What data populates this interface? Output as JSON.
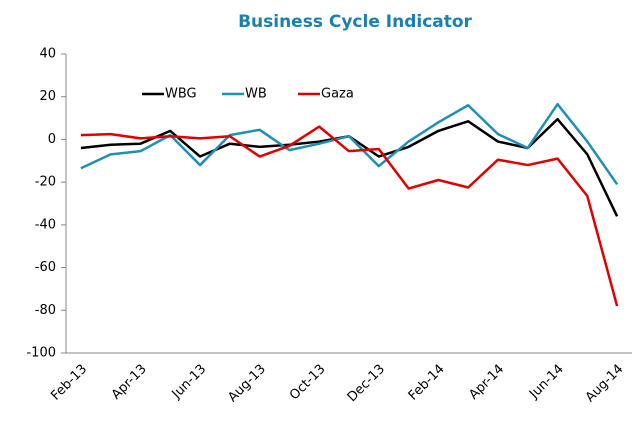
{
  "chart_data": {
    "type": "line",
    "title": "Business Cycle Indicator",
    "categories": [
      "Feb-13",
      null,
      "Apr-13",
      null,
      "Jun-13",
      null,
      "Aug-13",
      null,
      "Oct-13",
      null,
      "Dec-13",
      null,
      "Feb-14",
      null,
      "Apr-14",
      null,
      "Jun-14",
      null,
      "Aug-14"
    ],
    "series": [
      {
        "name": "WBG",
        "color": "#000000",
        "values": [
          -4,
          -2.5,
          -2,
          4,
          -8,
          -2,
          -3.5,
          -2.5,
          -1,
          1.5,
          -8,
          -3.5,
          4,
          8.5,
          -1,
          -4,
          9.5,
          -7,
          -36
        ]
      },
      {
        "name": "WB",
        "color": "#1f8fb4",
        "values": [
          -13.5,
          -7,
          -5.5,
          2,
          -12,
          2,
          4.5,
          -5,
          -2,
          1.5,
          -12.5,
          -1,
          8,
          16,
          2.5,
          -4,
          16.5,
          -1,
          -21
        ]
      },
      {
        "name": "Gaza",
        "color": "#e00000",
        "values": [
          2,
          2.5,
          0.5,
          1.5,
          0.5,
          1.5,
          -8,
          -3,
          6,
          -5.5,
          -4.5,
          -23,
          -19,
          -22.5,
          -9.5,
          -12,
          -9,
          -26.5,
          -78
        ]
      }
    ],
    "ylim": [
      -100,
      40
    ],
    "yticks": [
      -100,
      -80,
      -60,
      -40,
      -20,
      0,
      20,
      40
    ],
    "grid": false
  }
}
